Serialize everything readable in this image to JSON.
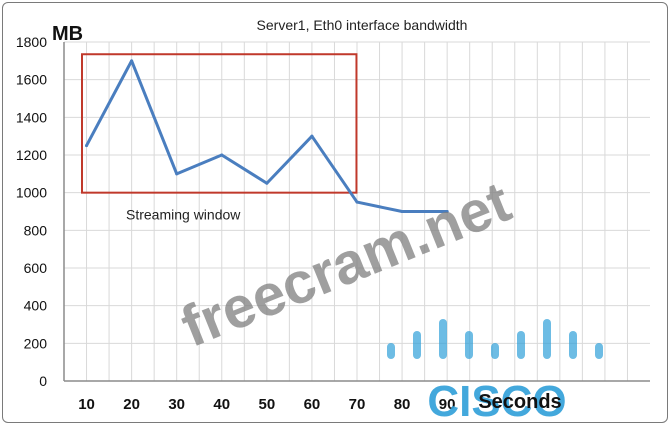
{
  "chart_data": {
    "type": "line",
    "title": "Server1, Eth0 interface bandwidth",
    "ylabel": "MB",
    "xlabel": "Seconds",
    "x": [
      10,
      20,
      30,
      40,
      50,
      60,
      70,
      80,
      90
    ],
    "series": [
      {
        "values": [
          1250,
          1700,
          1100,
          1200,
          1050,
          1300,
          950,
          900,
          900
        ]
      }
    ],
    "xlim": [
      5,
      135
    ],
    "ylim": [
      0,
      1800
    ],
    "yticks": [
      0,
      200,
      400,
      600,
      800,
      1000,
      1200,
      1400,
      1600,
      1800
    ],
    "xticks": [
      10,
      20,
      30,
      40,
      50,
      60,
      70,
      80,
      90
    ],
    "grid": true,
    "annotation": {
      "label": "Streaming window",
      "x_range": [
        5,
        65
      ],
      "y_range": [
        1000,
        1735
      ]
    },
    "colors": {
      "line": "#4a7ebf",
      "box": "#c0392b",
      "grid": "#d9d9d9",
      "watermark": "#7f7f7f",
      "cisco": "#2f9fd8"
    }
  },
  "watermark": {
    "text": "freecram.net",
    "logo_text": "CISCO"
  }
}
